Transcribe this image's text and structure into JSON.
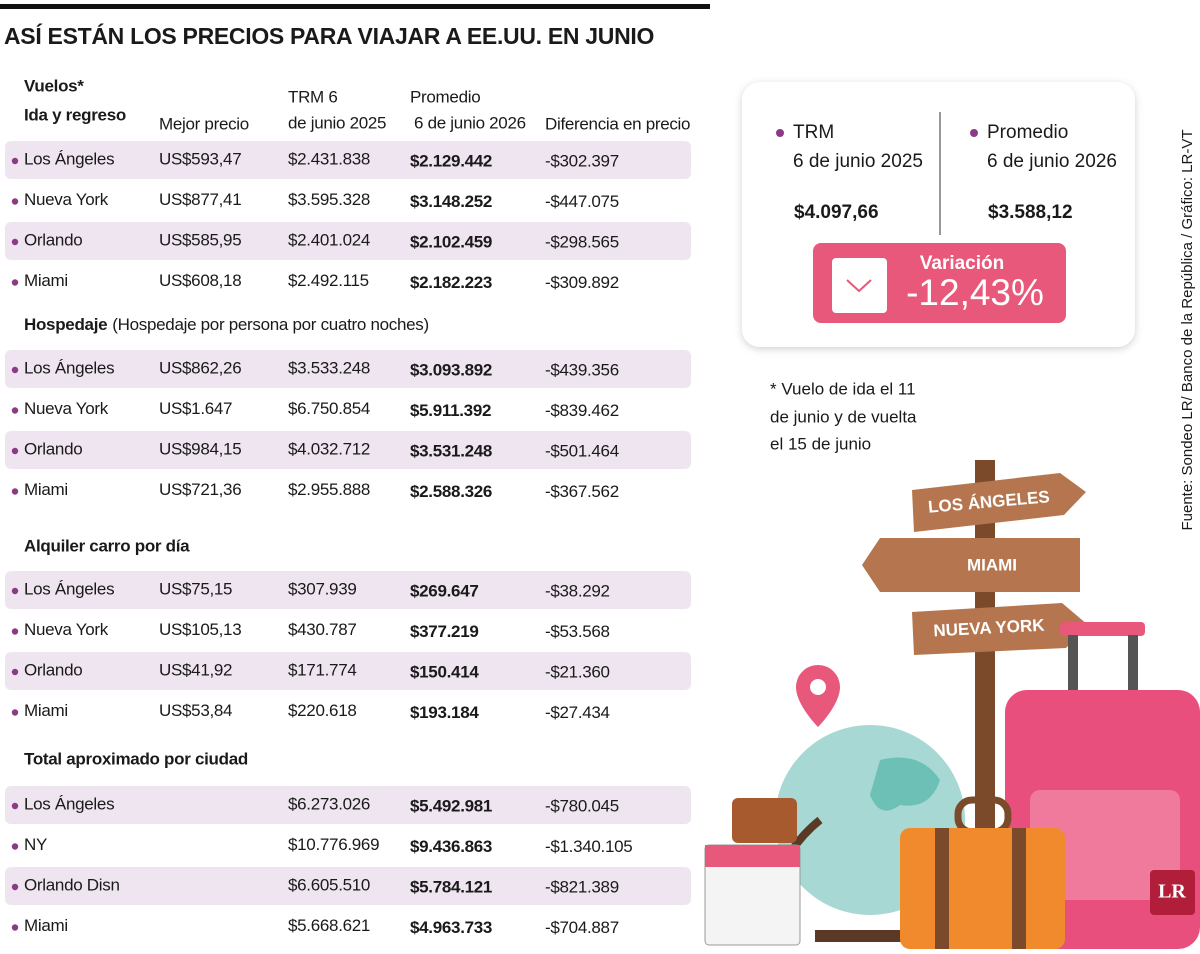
{
  "title": "ASÍ ESTÁN LOS PRECIOS PARA VIAJAR A EE.UU. EN JUNIO",
  "columns": [
    [
      "Mejor precio"
    ],
    [
      "TRM 6",
      "de junio 2025"
    ],
    [
      "Promedio",
      "6 de junio 2026"
    ],
    [
      "Diferencia en precio"
    ]
  ],
  "sections": [
    {
      "title": "Vuelos*",
      "subtitle": "Ida y regreso",
      "rows": [
        {
          "city": "Los Ángeles",
          "best": "US$593,47",
          "trm": "$2.431.838",
          "avg": "$2.129.442",
          "diff": "-$302.397"
        },
        {
          "city": "Nueva York",
          "best": "US$877,41",
          "trm": "$3.595.328",
          "avg": "$3.148.252",
          "diff": "-$447.075"
        },
        {
          "city": "Orlando",
          "best": "US$585,95",
          "trm": "$2.401.024",
          "avg": "$2.102.459",
          "diff": "-$298.565"
        },
        {
          "city": "Miami",
          "best": "US$608,18",
          "trm": "$2.492.115",
          "avg": "$2.182.223",
          "diff": "-$309.892"
        }
      ]
    },
    {
      "title": "Hospedaje",
      "note": "(Hospedaje por persona por cuatro noches)",
      "rows": [
        {
          "city": "Los Ángeles",
          "best": "US$862,26",
          "trm": "$3.533.248",
          "avg": "$3.093.892",
          "diff": "-$439.356"
        },
        {
          "city": "Nueva York",
          "best": "US$1.647",
          "trm": "$6.750.854",
          "avg": "$5.911.392",
          "diff": "-$839.462"
        },
        {
          "city": "Orlando",
          "best": "US$984,15",
          "trm": "$4.032.712",
          "avg": "$3.531.248",
          "diff": "-$501.464"
        },
        {
          "city": "Miami",
          "best": "US$721,36",
          "trm": "$2.955.888",
          "avg": "$2.588.326",
          "diff": "-$367.562"
        }
      ]
    },
    {
      "title": "Alquiler carro por día",
      "rows": [
        {
          "city": "Los Ángeles",
          "best": "US$75,15",
          "trm": "$307.939",
          "avg": "$269.647",
          "diff": "-$38.292"
        },
        {
          "city": "Nueva York",
          "best": "US$105,13",
          "trm": "$430.787",
          "avg": "$377.219",
          "diff": "-$53.568"
        },
        {
          "city": "Orlando",
          "best": "US$41,92",
          "trm": "$171.774",
          "avg": "$150.414",
          "diff": "-$21.360"
        },
        {
          "city": "Miami",
          "best": "US$53,84",
          "trm": "$220.618",
          "avg": "$193.184",
          "diff": "-$27.434"
        }
      ]
    },
    {
      "title": "Total aproximado por ciudad",
      "rows": [
        {
          "city": "Los Ángeles",
          "trm": "$6.273.026",
          "avg": "$5.492.981",
          "diff": "-$780.045"
        },
        {
          "city": "NY",
          "trm": "$10.776.969",
          "avg": "$9.436.863",
          "diff": "-$1.340.105"
        },
        {
          "city": "Orlando Disn",
          "trm": "$6.605.510",
          "avg": "$5.784.121",
          "diff": "-$821.389"
        },
        {
          "city": "Miami",
          "trm": "$5.668.621",
          "avg": "$4.963.733",
          "diff": "-$704.887"
        }
      ]
    }
  ],
  "summary": {
    "trm": {
      "label": "TRM",
      "sub": "6 de junio 2025",
      "value": "$4.097,66"
    },
    "avg": {
      "label": "Promedio",
      "sub": "6 de junio 2026",
      "value": "$3.588,12"
    },
    "variation": {
      "label": "Variación",
      "value": "-12,43%"
    }
  },
  "footnote": [
    "* Vuelo de ida el 11",
    "de junio y de vuelta",
    "el 15 de junio"
  ],
  "signs": [
    "LOS ÁNGELES",
    "MIAMI",
    "NUEVA YORK"
  ],
  "source": "Fuente: Sondeo LR/ Banco de la República / Gráfico: LR-VT",
  "logo": "LR"
}
